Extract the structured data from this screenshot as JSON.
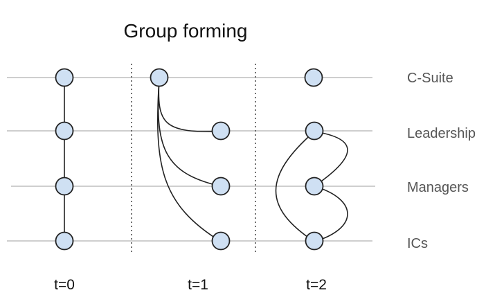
{
  "title": "Group forming",
  "levels": [
    "C-Suite",
    "Leadership",
    "Managers",
    "ICs"
  ],
  "time_steps": [
    "t=0",
    "t=1",
    "t=2"
  ],
  "colors": {
    "node_fill": "#cfe0f3",
    "node_stroke": "#222222",
    "level_line": "#bdbdbd",
    "label_text": "#555555"
  }
}
